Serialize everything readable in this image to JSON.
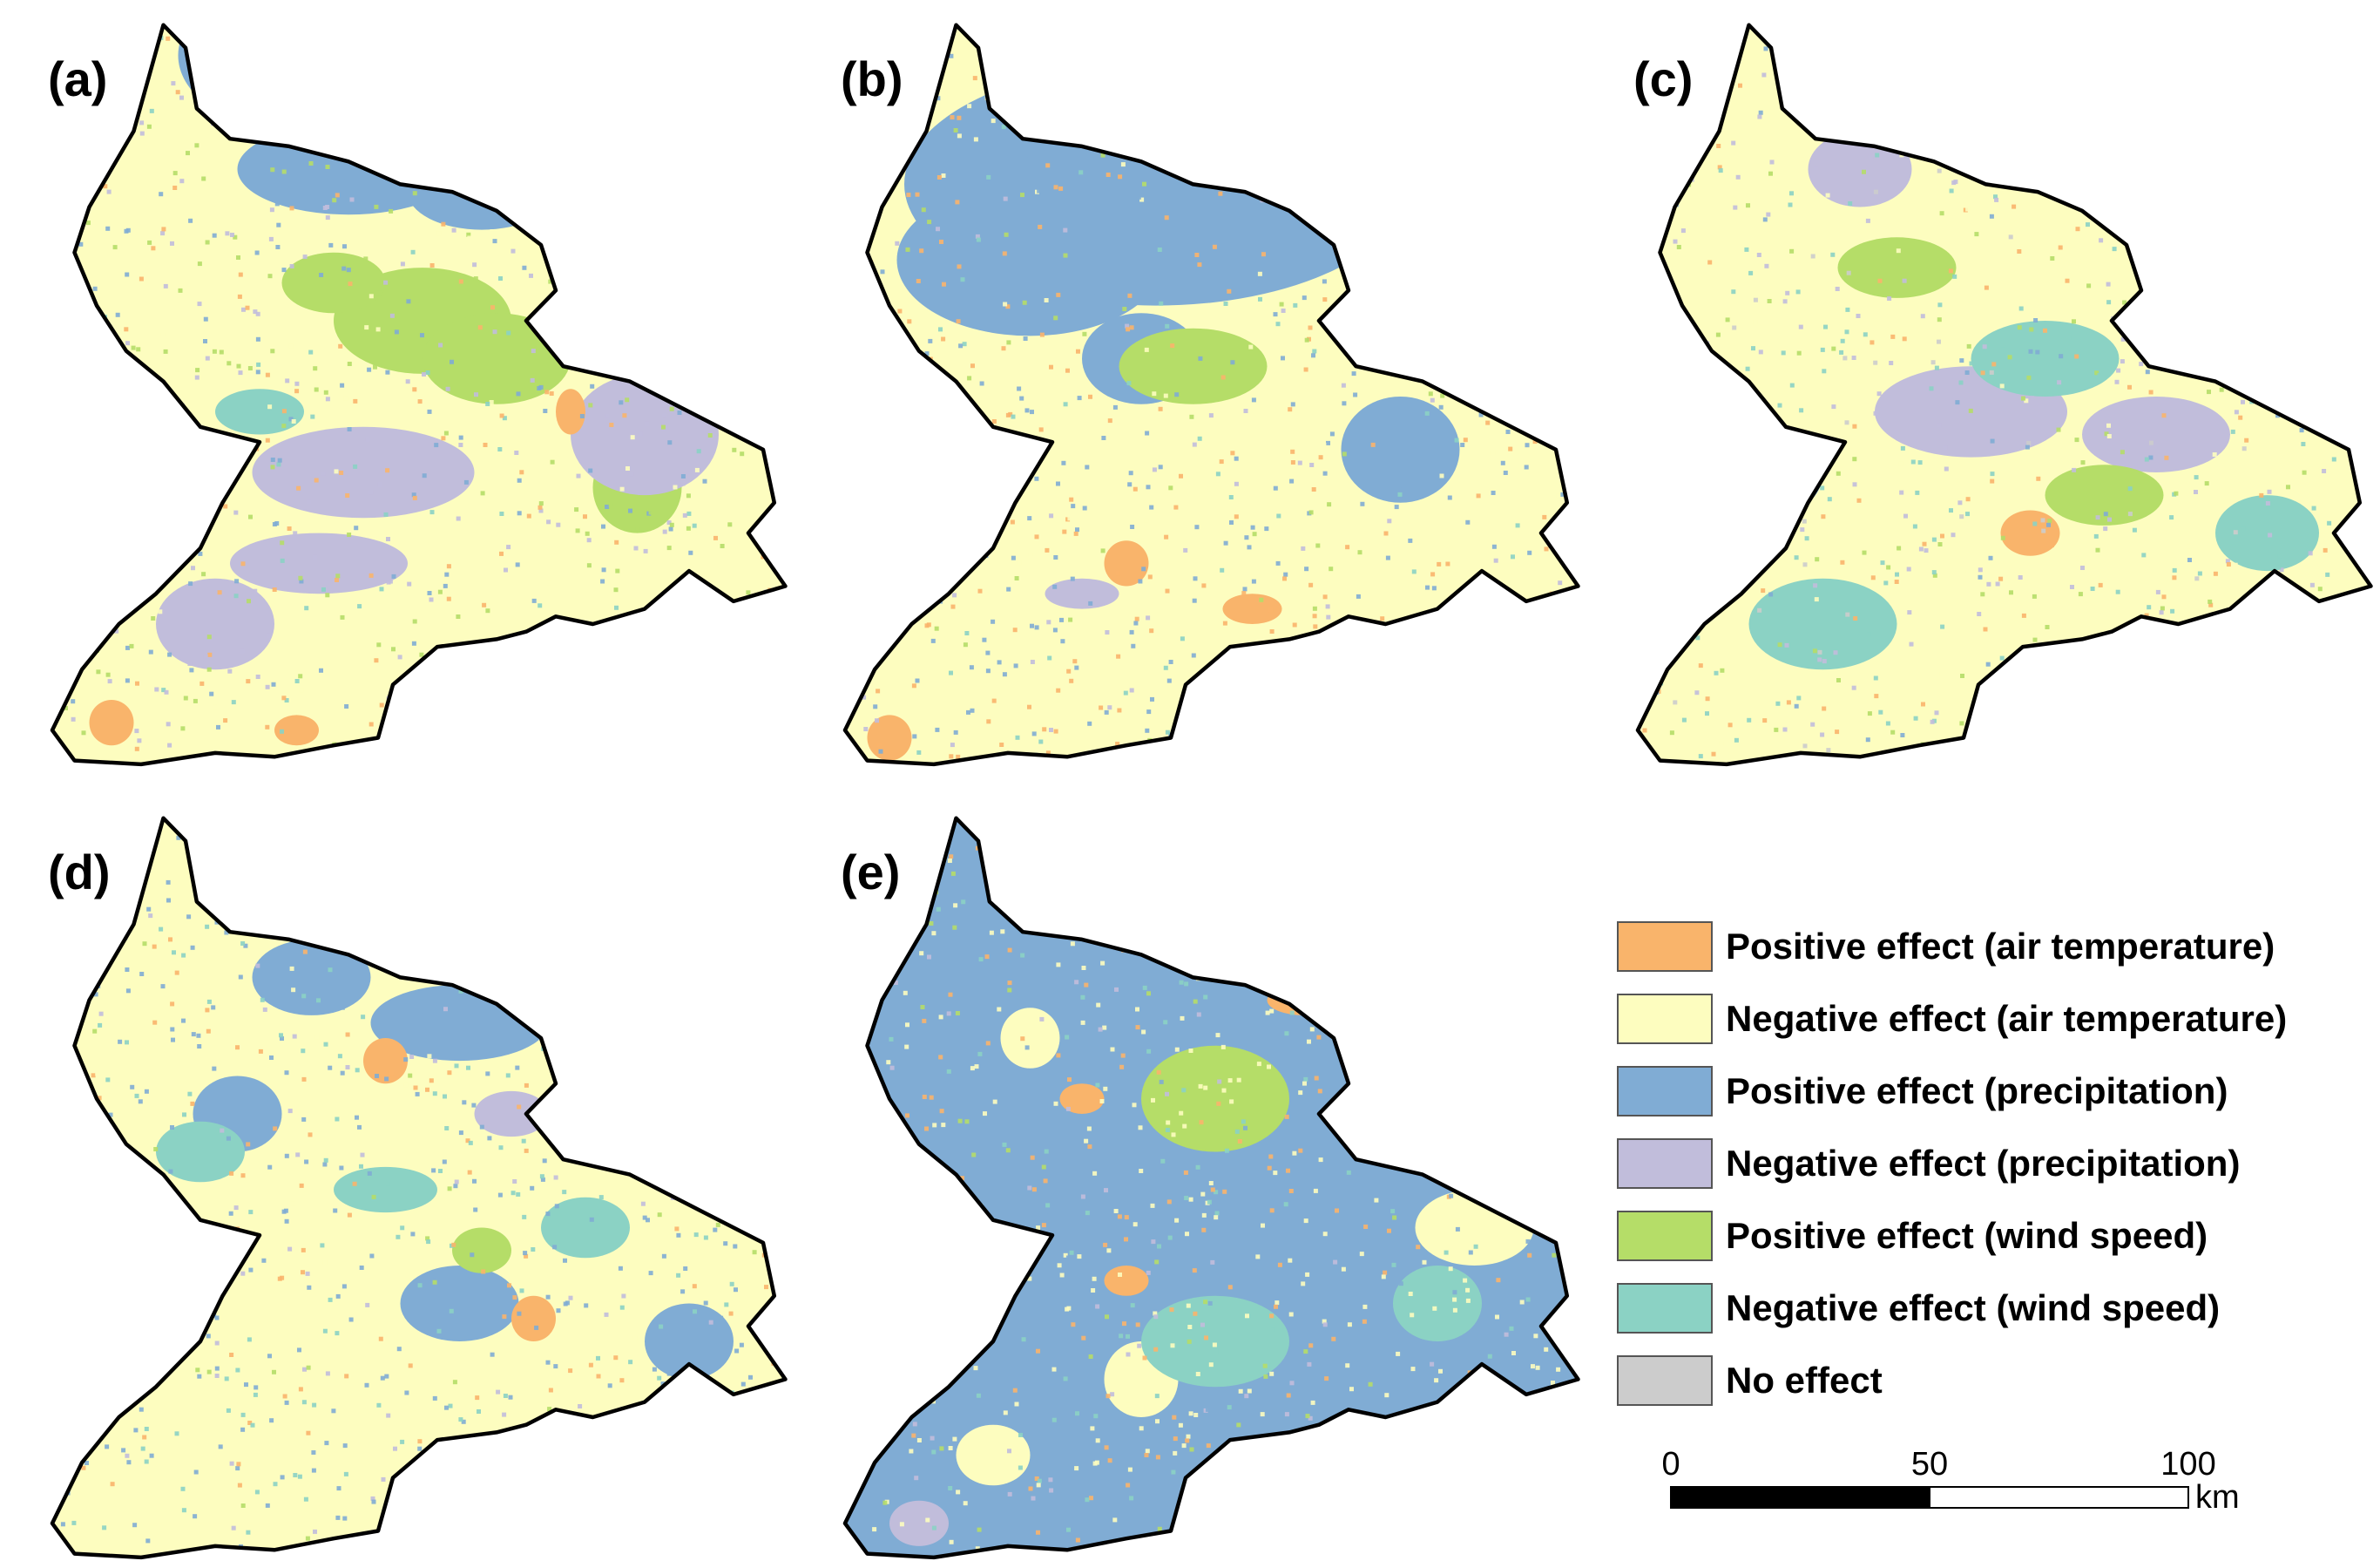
{
  "colors": {
    "pos_air": "#f9b46b",
    "neg_air": "#fdfdbf",
    "pos_precip": "#80acd4",
    "neg_precip": "#c1bddb",
    "pos_wind": "#b5dd68",
    "neg_wind": "#8bd2c4",
    "no_effect": "#cccccc"
  },
  "panels": [
    {
      "label": "(a)",
      "base": "neg_air",
      "patches": [
        [
          "pos_precip",
          0.3,
          0.05,
          0.13,
          0.09
        ],
        [
          "pos_precip",
          0.4,
          0.2,
          0.15,
          0.06
        ],
        [
          "pos_precip",
          0.58,
          0.23,
          0.1,
          0.05
        ],
        [
          "pos_wind",
          0.5,
          0.4,
          0.12,
          0.07
        ],
        [
          "pos_wind",
          0.6,
          0.45,
          0.1,
          0.06
        ],
        [
          "pos_wind",
          0.38,
          0.35,
          0.07,
          0.04
        ],
        [
          "pos_wind",
          0.79,
          0.62,
          0.06,
          0.06
        ],
        [
          "neg_precip",
          0.8,
          0.55,
          0.1,
          0.08
        ],
        [
          "neg_precip",
          0.42,
          0.6,
          0.15,
          0.06
        ],
        [
          "neg_precip",
          0.22,
          0.8,
          0.08,
          0.06
        ],
        [
          "neg_precip",
          0.36,
          0.72,
          0.12,
          0.04
        ],
        [
          "neg_wind",
          0.28,
          0.52,
          0.06,
          0.03
        ],
        [
          "pos_air",
          0.7,
          0.52,
          0.02,
          0.03
        ],
        [
          "pos_air",
          0.08,
          0.93,
          0.03,
          0.03
        ],
        [
          "pos_air",
          0.33,
          0.94,
          0.03,
          0.02
        ]
      ]
    },
    {
      "label": "(b)",
      "base": "neg_air",
      "patches": [
        [
          "pos_precip",
          0.42,
          0.22,
          0.34,
          0.16
        ],
        [
          "pos_precip",
          0.25,
          0.32,
          0.18,
          0.1
        ],
        [
          "pos_precip",
          0.3,
          0.08,
          0.1,
          0.1
        ],
        [
          "pos_precip",
          0.4,
          0.45,
          0.08,
          0.06
        ],
        [
          "pos_precip",
          0.75,
          0.57,
          0.08,
          0.07
        ],
        [
          "pos_wind",
          0.47,
          0.46,
          0.1,
          0.05
        ],
        [
          "neg_wind",
          0.29,
          0.05,
          0.03,
          0.04
        ],
        [
          "pos_air",
          0.38,
          0.72,
          0.03,
          0.03
        ],
        [
          "pos_air",
          0.06,
          0.95,
          0.03,
          0.03
        ],
        [
          "pos_air",
          0.55,
          0.78,
          0.04,
          0.02
        ],
        [
          "neg_precip",
          0.32,
          0.76,
          0.05,
          0.02
        ]
      ]
    },
    {
      "label": "(c)",
      "base": "neg_air",
      "patches": [
        [
          "no_effect",
          0.36,
          0.06,
          0.05,
          0.1
        ],
        [
          "pos_wind",
          0.35,
          0.33,
          0.08,
          0.04
        ],
        [
          "neg_precip",
          0.3,
          0.2,
          0.07,
          0.05
        ],
        [
          "neg_precip",
          0.45,
          0.52,
          0.13,
          0.06
        ],
        [
          "neg_precip",
          0.7,
          0.55,
          0.1,
          0.05
        ],
        [
          "neg_wind",
          0.55,
          0.45,
          0.1,
          0.05
        ],
        [
          "neg_wind",
          0.25,
          0.8,
          0.1,
          0.06
        ],
        [
          "neg_wind",
          0.85,
          0.68,
          0.07,
          0.05
        ],
        [
          "pos_precip",
          0.2,
          0.6,
          0.05,
          0.05
        ],
        [
          "pos_wind",
          0.63,
          0.63,
          0.08,
          0.04
        ],
        [
          "pos_air",
          0.53,
          0.68,
          0.04,
          0.03
        ],
        [
          "pos_air",
          0.36,
          0.1,
          0.03,
          0.02
        ]
      ]
    },
    {
      "label": "(d)",
      "base": "neg_air",
      "patches": [
        [
          "pos_precip",
          0.35,
          0.22,
          0.08,
          0.05
        ],
        [
          "pos_precip",
          0.55,
          0.28,
          0.12,
          0.05
        ],
        [
          "pos_precip",
          0.25,
          0.4,
          0.06,
          0.05
        ],
        [
          "pos_precip",
          0.55,
          0.65,
          0.08,
          0.05
        ],
        [
          "pos_precip",
          0.86,
          0.7,
          0.06,
          0.05
        ],
        [
          "neg_wind",
          0.2,
          0.45,
          0.06,
          0.04
        ],
        [
          "neg_wind",
          0.45,
          0.5,
          0.07,
          0.03
        ],
        [
          "neg_wind",
          0.72,
          0.55,
          0.06,
          0.04
        ],
        [
          "neg_precip",
          0.62,
          0.4,
          0.05,
          0.03
        ],
        [
          "pos_air",
          0.45,
          0.33,
          0.03,
          0.03
        ],
        [
          "pos_air",
          0.65,
          0.67,
          0.03,
          0.03
        ],
        [
          "pos_wind",
          0.58,
          0.58,
          0.04,
          0.03
        ]
      ]
    },
    {
      "label": "(e)",
      "base": "pos_precip",
      "patches": [
        [
          "pos_wind",
          0.5,
          0.38,
          0.1,
          0.07
        ],
        [
          "neg_air",
          0.25,
          0.3,
          0.04,
          0.04
        ],
        [
          "neg_air",
          0.85,
          0.55,
          0.08,
          0.05
        ],
        [
          "neg_air",
          0.4,
          0.75,
          0.05,
          0.05
        ],
        [
          "neg_air",
          0.2,
          0.85,
          0.05,
          0.04
        ],
        [
          "neg_air",
          0.62,
          0.9,
          0.04,
          0.03
        ],
        [
          "neg_wind",
          0.5,
          0.7,
          0.1,
          0.06
        ],
        [
          "neg_wind",
          0.8,
          0.65,
          0.06,
          0.05
        ],
        [
          "pos_air",
          0.62,
          0.25,
          0.05,
          0.02
        ],
        [
          "pos_air",
          0.32,
          0.38,
          0.03,
          0.02
        ],
        [
          "pos_air",
          0.38,
          0.62,
          0.03,
          0.02
        ],
        [
          "neg_precip",
          0.1,
          0.94,
          0.04,
          0.03
        ]
      ]
    }
  ],
  "legend": [
    {
      "color": "pos_air",
      "label": "Positive effect (air temperature)"
    },
    {
      "color": "neg_air",
      "label": "Negative effect (air temperature)"
    },
    {
      "color": "pos_precip",
      "label": "Positive effect (precipitation)"
    },
    {
      "color": "neg_precip",
      "label": "Negative effect (precipitation)"
    },
    {
      "color": "pos_wind",
      "label": "Positive effect (wind speed)"
    },
    {
      "color": "neg_wind",
      "label": "Negative effect (wind speed)"
    },
    {
      "color": "no_effect",
      "label": "No effect"
    }
  ],
  "scale_bar": {
    "ticks": [
      "0",
      "50",
      "100"
    ],
    "unit": "km"
  }
}
